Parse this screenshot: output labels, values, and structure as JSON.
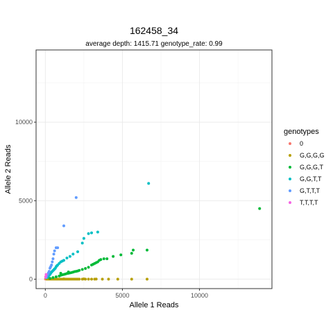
{
  "chart_data": {
    "type": "scatter",
    "title": "162458_34",
    "subtitle": "average depth:  1415.71  genotype_rate:  0.99",
    "xlabel": "Allele 1 Reads",
    "ylabel": "Allele 2 Reads",
    "xlim": [
      -600,
      14700
    ],
    "ylim": [
      -600,
      14600
    ],
    "x_ticks": [
      0,
      5000,
      10000
    ],
    "y_ticks": [
      0,
      5000,
      10000
    ],
    "grid": true,
    "legend": {
      "title": "genotypes",
      "position": "right"
    },
    "series": [
      {
        "name": "0",
        "color": "#F8766D",
        "points": [
          [
            10,
            10
          ],
          [
            30,
            20
          ]
        ]
      },
      {
        "name": "G,G,G,G",
        "color": "#B79F00",
        "points": [
          [
            100,
            0
          ],
          [
            200,
            0
          ],
          [
            300,
            0
          ],
          [
            400,
            0
          ],
          [
            500,
            0
          ],
          [
            600,
            0
          ],
          [
            700,
            0
          ],
          [
            800,
            0
          ],
          [
            900,
            0
          ],
          [
            1000,
            0
          ],
          [
            1100,
            0
          ],
          [
            1200,
            0
          ],
          [
            1300,
            0
          ],
          [
            1400,
            0
          ],
          [
            1500,
            0
          ],
          [
            1600,
            0
          ],
          [
            1700,
            0
          ],
          [
            1800,
            0
          ],
          [
            1900,
            0
          ],
          [
            2000,
            0
          ],
          [
            2100,
            0
          ],
          [
            2200,
            0
          ],
          [
            2400,
            0
          ],
          [
            2600,
            0
          ],
          [
            2800,
            0
          ],
          [
            3000,
            0
          ],
          [
            3200,
            0
          ],
          [
            3700,
            0
          ],
          [
            4100,
            0
          ],
          [
            4700,
            0
          ],
          [
            5600,
            0
          ],
          [
            6600,
            0
          ],
          [
            1200,
            20
          ],
          [
            2500,
            20
          ],
          [
            3300,
            10
          ]
        ]
      },
      {
        "name": "G,G,G,T",
        "color": "#00BA38",
        "points": [
          [
            300,
            50
          ],
          [
            500,
            100
          ],
          [
            700,
            150
          ],
          [
            900,
            200
          ],
          [
            1000,
            250
          ],
          [
            1100,
            280
          ],
          [
            1200,
            300
          ],
          [
            1300,
            330
          ],
          [
            1400,
            360
          ],
          [
            1500,
            380
          ],
          [
            1600,
            400
          ],
          [
            1700,
            420
          ],
          [
            1800,
            450
          ],
          [
            1900,
            480
          ],
          [
            2000,
            500
          ],
          [
            2100,
            520
          ],
          [
            2200,
            560
          ],
          [
            2400,
            620
          ],
          [
            2600,
            680
          ],
          [
            2800,
            760
          ],
          [
            3000,
            900
          ],
          [
            3100,
            950
          ],
          [
            3200,
            1000
          ],
          [
            3300,
            1050
          ],
          [
            3400,
            1100
          ],
          [
            3500,
            1200
          ],
          [
            3600,
            1250
          ],
          [
            3800,
            1300
          ],
          [
            4000,
            1300
          ],
          [
            4400,
            1450
          ],
          [
            4900,
            1550
          ],
          [
            5600,
            1650
          ],
          [
            5700,
            1850
          ],
          [
            6600,
            1850
          ],
          [
            1000,
            380
          ],
          [
            1500,
            460
          ],
          [
            13900,
            4500
          ]
        ]
      },
      {
        "name": "G,G,T,T",
        "color": "#00BFC4",
        "points": [
          [
            100,
            100
          ],
          [
            150,
            150
          ],
          [
            200,
            200
          ],
          [
            250,
            250
          ],
          [
            300,
            300
          ],
          [
            350,
            380
          ],
          [
            400,
            450
          ],
          [
            450,
            500
          ],
          [
            500,
            550
          ],
          [
            550,
            600
          ],
          [
            600,
            650
          ],
          [
            650,
            700
          ],
          [
            700,
            800
          ],
          [
            750,
            850
          ],
          [
            800,
            900
          ],
          [
            900,
            1000
          ],
          [
            1000,
            1100
          ],
          [
            1100,
            1150
          ],
          [
            1200,
            1200
          ],
          [
            1400,
            1350
          ],
          [
            1600,
            1450
          ],
          [
            1800,
            1600
          ],
          [
            2100,
            1750
          ],
          [
            2400,
            2300
          ],
          [
            2500,
            2600
          ],
          [
            2800,
            2900
          ],
          [
            3000,
            2950
          ],
          [
            3400,
            3000
          ],
          [
            6700,
            6100
          ]
        ]
      },
      {
        "name": "G,T,T,T",
        "color": "#619CFF",
        "points": [
          [
            50,
            100
          ],
          [
            100,
            200
          ],
          [
            150,
            300
          ],
          [
            200,
            400
          ],
          [
            250,
            500
          ],
          [
            300,
            700
          ],
          [
            350,
            800
          ],
          [
            400,
            900
          ],
          [
            450,
            1100
          ],
          [
            500,
            1300
          ],
          [
            550,
            1600
          ],
          [
            600,
            1800
          ],
          [
            700,
            2000
          ],
          [
            800,
            2000
          ],
          [
            1200,
            3400
          ],
          [
            2000,
            5200
          ]
        ]
      },
      {
        "name": "T,T,T,T",
        "color": "#F564E3",
        "points": [
          [
            20,
            150
          ],
          [
            50,
            300
          ]
        ]
      }
    ]
  }
}
